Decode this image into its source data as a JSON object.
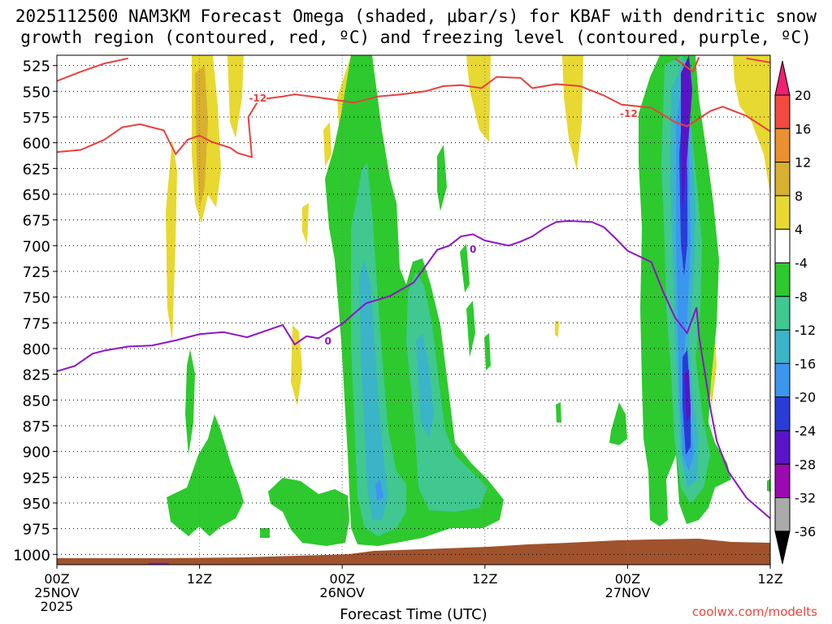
{
  "chart_data": {
    "type": "heatmap",
    "title_line1": "2025112500 NAM3KM Forecast Omega (shaded, μbar/s) for KBAF with dendritic snow",
    "title_line2": "growth region (contoured, red, ºC) and freezing level (contoured, purple, ºC)",
    "xlabel": "Forecast Time (UTC)",
    "credit": "coolwx.com/modelts",
    "x_range_hours": [
      0,
      60
    ],
    "y_range_hPa": [
      1010,
      515
    ],
    "y_ticks": [
      "525",
      "550",
      "575",
      "600",
      "625",
      "650",
      "675",
      "700",
      "725",
      "750",
      "775",
      "800",
      "825",
      "850",
      "875",
      "900",
      "925",
      "950",
      "975",
      "1000"
    ],
    "x_ticks": [
      {
        "hour": 0,
        "l1": "00Z",
        "l2": "25NOV",
        "l3": "2025"
      },
      {
        "hour": 12,
        "l1": "12Z",
        "l2": "",
        "l3": ""
      },
      {
        "hour": 24,
        "l1": "00Z",
        "l2": "26NOV",
        "l3": ""
      },
      {
        "hour": 36,
        "l1": "12Z",
        "l2": "",
        "l3": ""
      },
      {
        "hour": 48,
        "l1": "00Z",
        "l2": "27NOV",
        "l3": ""
      },
      {
        "hour": 60,
        "l1": "12Z",
        "l2": "",
        "l3": ""
      }
    ],
    "colorbar": {
      "labels": [
        "20",
        "16",
        "12",
        "8",
        "4",
        "-4",
        "-8",
        "-12",
        "-16",
        "-20",
        "-24",
        "-28",
        "-32",
        "-36"
      ],
      "colors": [
        "#f0206e",
        "#f24a40",
        "#ea9030",
        "#d8b030",
        "#e8d832",
        "#ffffff",
        "#2ec92e",
        "#40c890",
        "#3cb4c8",
        "#3c96f0",
        "#2a3cd8",
        "#5a14c8",
        "#9a0ab0",
        "#aaaaaa",
        "#000000"
      ]
    },
    "dgz_contour": {
      "label": "-12",
      "color": "#e8403c",
      "segments": [
        [
          [
            0,
            540
          ],
          [
            2,
            531
          ],
          [
            4,
            523
          ],
          [
            6,
            518
          ]
        ],
        [
          [
            0,
            609
          ],
          [
            2,
            607
          ],
          [
            4,
            597
          ],
          [
            5.5,
            585
          ],
          [
            7,
            582
          ],
          [
            9,
            588
          ],
          [
            9.5,
            600
          ],
          [
            10,
            611
          ],
          [
            11,
            597
          ],
          [
            12,
            593
          ],
          [
            13,
            599
          ],
          [
            14.6,
            605
          ],
          [
            15.2,
            610
          ],
          [
            16.4,
            614
          ],
          [
            16.1,
            575
          ],
          [
            17,
            558
          ],
          [
            19,
            555
          ],
          [
            20,
            553
          ],
          [
            22,
            556
          ],
          [
            25,
            561
          ],
          [
            27,
            555
          ],
          [
            29,
            553
          ],
          [
            31,
            550
          ],
          [
            32.5,
            545
          ],
          [
            34,
            544
          ],
          [
            35.7,
            547
          ],
          [
            37,
            536
          ],
          [
            39,
            537
          ],
          [
            40,
            547
          ],
          [
            42,
            543
          ],
          [
            44,
            545
          ],
          [
            46,
            554
          ],
          [
            47.5,
            563
          ],
          [
            50,
            566
          ],
          [
            52,
            580
          ],
          [
            53,
            584
          ],
          [
            55,
            569
          ],
          [
            56,
            565
          ],
          [
            58,
            574
          ],
          [
            60,
            589
          ]
        ],
        [
          [
            52,
            518
          ],
          [
            53.5,
            531
          ],
          [
            54,
            517
          ]
        ],
        [
          [
            58,
            518
          ],
          [
            60,
            522
          ]
        ]
      ]
    },
    "freezing_contour": {
      "label": "0",
      "color": "#8c14c8",
      "segments": [
        [
          [
            0,
            822
          ],
          [
            1.5,
            817
          ],
          [
            3,
            805
          ],
          [
            4,
            802
          ],
          [
            6,
            798
          ],
          [
            8,
            797
          ],
          [
            10,
            792
          ],
          [
            12,
            786
          ],
          [
            14,
            784
          ],
          [
            16,
            789
          ],
          [
            18,
            781
          ],
          [
            19,
            777
          ],
          [
            20,
            796
          ],
          [
            21,
            788
          ],
          [
            22,
            790
          ],
          [
            24,
            776
          ],
          [
            25,
            766
          ],
          [
            26,
            756
          ],
          [
            28,
            749
          ],
          [
            30,
            736
          ],
          [
            32,
            704
          ],
          [
            33,
            700
          ],
          [
            34,
            691
          ],
          [
            35,
            689
          ],
          [
            36,
            695
          ],
          [
            38,
            700
          ],
          [
            39,
            696
          ],
          [
            40,
            691
          ],
          [
            41,
            683
          ],
          [
            42,
            677
          ],
          [
            43,
            676
          ],
          [
            45,
            677
          ],
          [
            46,
            682
          ],
          [
            47,
            693
          ],
          [
            48,
            705
          ],
          [
            50,
            716
          ],
          [
            51,
            745
          ],
          [
            52,
            770
          ],
          [
            53,
            785
          ],
          [
            53.8,
            760
          ],
          [
            54,
            787
          ],
          [
            55,
            860
          ],
          [
            55.5,
            890
          ],
          [
            56.5,
            920
          ],
          [
            58,
            945
          ],
          [
            60,
            965
          ]
        ],
        [
          [
            7.7,
            1009
          ],
          [
            9.4,
            1009
          ]
        ]
      ]
    }
  }
}
